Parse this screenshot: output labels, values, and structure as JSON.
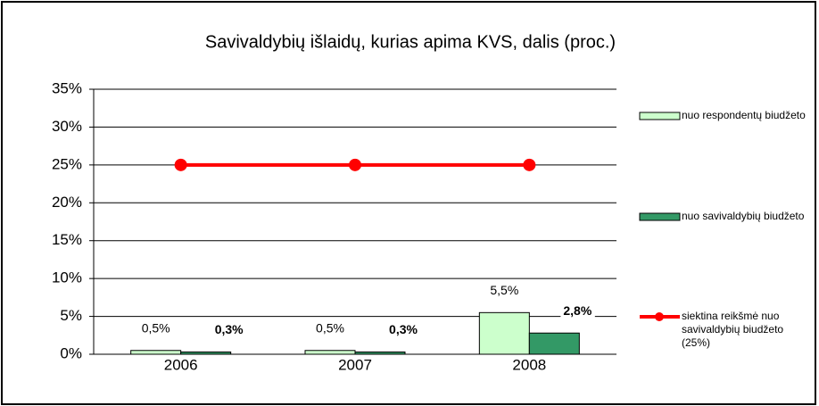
{
  "chart_data": {
    "type": "bar",
    "title": "Savivaldybių išlaidų, kurias apima KVS, dalis  (proc.)",
    "categories": [
      "2006",
      "2007",
      "2008"
    ],
    "series": [
      {
        "name": "nuo respondentų biudžeto",
        "color": "#ccffcc",
        "type": "bar",
        "values": [
          0.5,
          0.5,
          5.5
        ],
        "value_labels": [
          "0,5%",
          "0,5%",
          "5,5%"
        ]
      },
      {
        "name": "nuo savivaldybių biudžeto",
        "color": "#339966",
        "type": "bar",
        "values": [
          0.3,
          0.3,
          2.8
        ],
        "value_labels": [
          "0,3%",
          "0,3%",
          "2,8%"
        ]
      },
      {
        "name": "siektina reikšmė nuo savivaldybių biudžeto (25%)",
        "color": "#ff0000",
        "type": "line",
        "values": [
          25,
          25,
          25
        ]
      }
    ],
    "ylim": [
      0,
      35
    ],
    "yticks": [
      {
        "value": 0,
        "label": "0%"
      },
      {
        "value": 5,
        "label": "5%"
      },
      {
        "value": 10,
        "label": "10%"
      },
      {
        "value": 15,
        "label": "15%"
      },
      {
        "value": 20,
        "label": "20%"
      },
      {
        "value": 25,
        "label": "25%"
      },
      {
        "value": 30,
        "label": "30%"
      },
      {
        "value": 35,
        "label": "35%"
      }
    ],
    "grid": true,
    "legend": "right"
  }
}
